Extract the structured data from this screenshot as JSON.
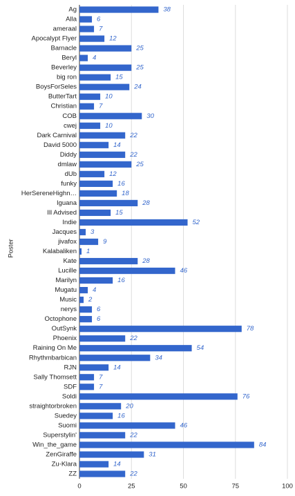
{
  "chart_data": {
    "type": "hbar",
    "y_axis_label": "Poster",
    "categories": [
      "Ag",
      "Alla",
      "ameraal",
      "Apocalypt Flyer",
      "Barnacle",
      "Beryl",
      "Beverley",
      "big ron",
      "BoysForSeles",
      "ButterTart",
      "Christian",
      "COB",
      "cwej",
      "Dark Carnival",
      "David 5000",
      "Diddy",
      "dmlaw",
      "dUb",
      "funky",
      "HerSereneHighn…",
      "Iguana",
      "Ill Advised",
      "Indie",
      "Jacques",
      "jivafox",
      "Kalabaliken",
      "Kate",
      "Lucille",
      "Marilyn",
      "Mugatu",
      "Music",
      "nerys",
      "Octophone",
      "OutSynk",
      "Phoenix",
      "Raining On Me",
      "Rhythmbarbican",
      "RJN",
      "Sally Thomsett",
      "SDF",
      "Soldi",
      "straightorbroken",
      "Suedey",
      "Suomi",
      "Superstylin'",
      "Win_the_game",
      "ZenGiraffe",
      "Zu-Klara",
      "ZZ"
    ],
    "values": [
      38,
      6,
      7,
      12,
      25,
      4,
      25,
      15,
      24,
      10,
      7,
      30,
      10,
      22,
      14,
      22,
      25,
      12,
      16,
      18,
      28,
      15,
      52,
      3,
      9,
      1,
      28,
      46,
      16,
      4,
      2,
      6,
      6,
      78,
      22,
      54,
      34,
      14,
      7,
      7,
      76,
      20,
      16,
      46,
      22,
      84,
      31,
      14,
      22
    ],
    "color": "#3366cc",
    "xlim": [
      0,
      100
    ],
    "xticks": [
      0,
      25,
      50,
      75,
      100
    ],
    "grid": true
  }
}
